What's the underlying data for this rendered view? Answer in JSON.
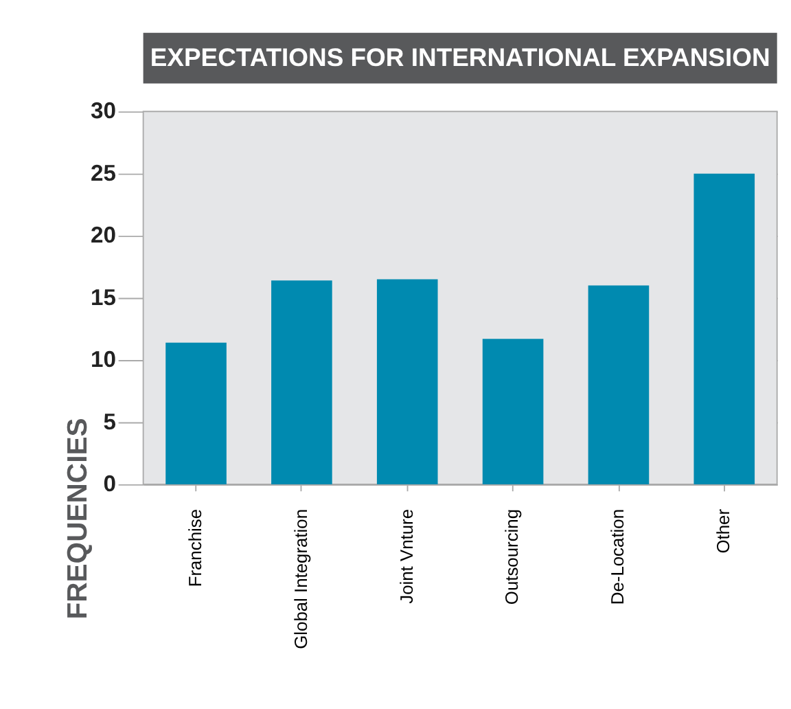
{
  "chart_data": {
    "type": "bar",
    "title": "EXPECTATIONS FOR INTERNATIONAL EXPANSION",
    "ylabel": "FREQUENCIES",
    "categories": [
      "Franchise",
      "Global Integration",
      "Joint  Vnture",
      "Outsourcing",
      "De-Location",
      "Other"
    ],
    "values": [
      11.4,
      16.4,
      16.5,
      11.7,
      16.0,
      25.0
    ],
    "color": "#008ab0",
    "ylim": [
      0,
      30
    ],
    "yticks": [
      0,
      5,
      10,
      15,
      20,
      25,
      30
    ],
    "grid": "y"
  }
}
